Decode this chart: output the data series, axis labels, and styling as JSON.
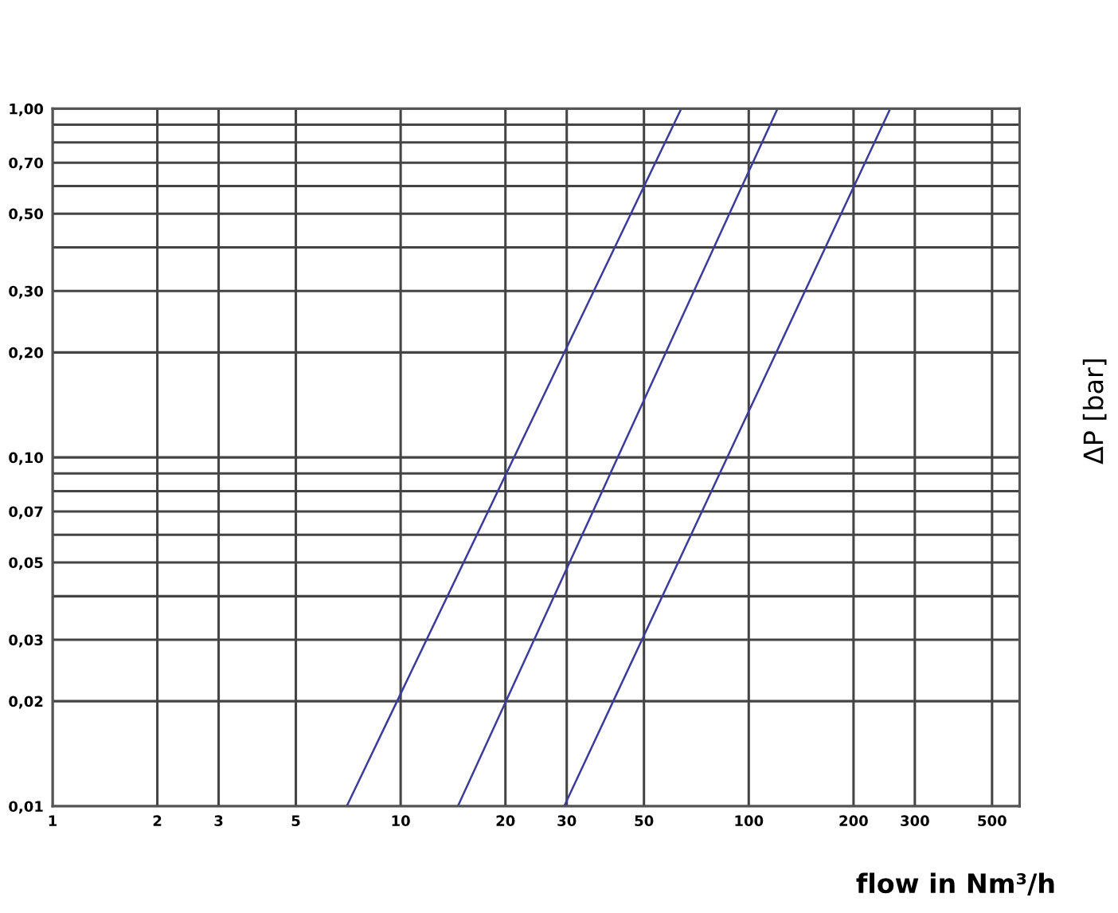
{
  "chart_data": {
    "type": "line",
    "xlabel": "flow in Nm³/h",
    "ylabel": "ΔP [bar]",
    "log": "xy",
    "grid": true,
    "marker": "none",
    "line_style": "solid",
    "xlim": [
      1,
      600
    ],
    "ylim": [
      0.01,
      1.0
    ],
    "xticks": [
      1,
      2,
      3,
      5,
      10,
      20,
      30,
      50,
      100,
      200,
      300,
      500
    ],
    "yticks": [
      {
        "value": 0.01,
        "label": "0,01"
      },
      {
        "value": 0.02,
        "label": "0,02"
      },
      {
        "value": 0.03,
        "label": "0,03"
      },
      {
        "value": 0.04,
        "label": null
      },
      {
        "value": 0.05,
        "label": "0,05"
      },
      {
        "value": 0.06,
        "label": null
      },
      {
        "value": 0.07,
        "label": "0,07"
      },
      {
        "value": 0.08,
        "label": null
      },
      {
        "value": 0.09,
        "label": null
      },
      {
        "value": 0.1,
        "label": "0,10"
      },
      {
        "value": 0.2,
        "label": "0,20"
      },
      {
        "value": 0.3,
        "label": "0,30"
      },
      {
        "value": 0.4,
        "label": null
      },
      {
        "value": 0.5,
        "label": "0,50"
      },
      {
        "value": 0.6,
        "label": null
      },
      {
        "value": 0.7,
        "label": "0,70"
      },
      {
        "value": 0.8,
        "label": null
      },
      {
        "value": 0.9,
        "label": null
      },
      {
        "value": 1.0,
        "label": "1,00"
      }
    ],
    "series": [
      {
        "color": "#3b3b9c",
        "x": [
          7,
          64
        ],
        "values": [
          0.01,
          1.0
        ]
      },
      {
        "color": "#3b3b9c",
        "x": [
          14.6,
          121
        ],
        "values": [
          0.01,
          1.0
        ]
      },
      {
        "color": "#3b3b9c",
        "x": [
          29.5,
          255
        ],
        "values": [
          0.01,
          1.0
        ]
      }
    ]
  }
}
